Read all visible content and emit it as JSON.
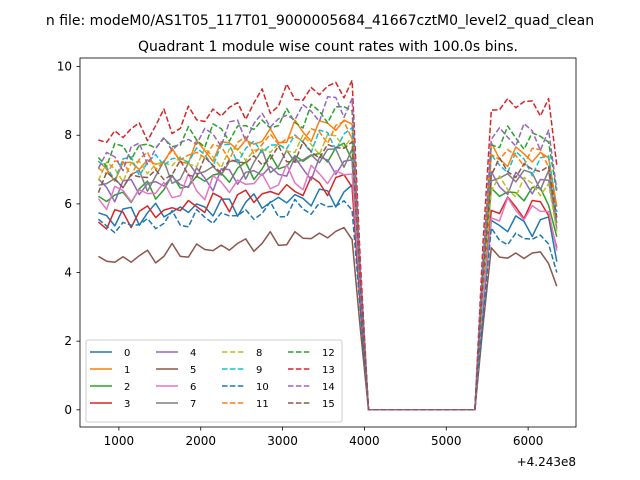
{
  "chart_data": {
    "type": "line",
    "suptitle": "n file: modeM0/AS1T05_117T01_9000005684_41667cztM0_level2_quad_clean",
    "title": "Quadrant 1 module wise count rates with 100.0s bins.",
    "xlabel": "",
    "ylabel": "",
    "x_offset_label": "+4.243e8",
    "xlim": [
      525,
      6585
    ],
    "ylim": [
      -0.5,
      10.25
    ],
    "xticks": [
      1000,
      2000,
      3000,
      4000,
      5000,
      6000
    ],
    "yticks": [
      0,
      2,
      4,
      6,
      8,
      10
    ],
    "grid": false,
    "legend_position": "lower-left",
    "legend_columns": 4,
    "x": [
      750,
      850,
      950,
      1050,
      1150,
      1250,
      1350,
      1450,
      1550,
      1650,
      1750,
      1850,
      1950,
      2050,
      2150,
      2250,
      2350,
      2450,
      2550,
      2650,
      2750,
      2850,
      2950,
      3050,
      3150,
      3250,
      3350,
      3450,
      3550,
      3650,
      3750,
      3850,
      3950,
      4050,
      4150,
      4250,
      4350,
      4450,
      4550,
      4650,
      4750,
      4850,
      4950,
      5050,
      5150,
      5250,
      5350,
      5450,
      5550,
      5650,
      5750,
      5850,
      5950,
      6050,
      6150,
      6250,
      6350
    ],
    "series": [
      {
        "name": "0",
        "color": "#1f77b4",
        "dash": false,
        "base": 5.6,
        "plateau": 6.3,
        "post": 5.4,
        "amp": 0.22,
        "phase": 0.3
      },
      {
        "name": "1",
        "color": "#ff7f0e",
        "dash": false,
        "base": 6.9,
        "plateau": 8.4,
        "post": 7.4,
        "amp": 0.25,
        "phase": 1.1
      },
      {
        "name": "2",
        "color": "#2ca02c",
        "dash": false,
        "base": 6.1,
        "plateau": 7.6,
        "post": 6.3,
        "amp": 0.22,
        "phase": 2.0
      },
      {
        "name": "3",
        "color": "#d62728",
        "dash": false,
        "base": 5.5,
        "plateau": 6.7,
        "post": 5.9,
        "amp": 0.22,
        "phase": 2.7
      },
      {
        "name": "4",
        "color": "#9467bd",
        "dash": false,
        "base": 6.4,
        "plateau": 7.2,
        "post": 6.6,
        "amp": 0.25,
        "phase": 0.8
      },
      {
        "name": "5",
        "color": "#8c564b",
        "dash": false,
        "base": 4.3,
        "plateau": 5.2,
        "post": 4.5,
        "amp": 0.18,
        "phase": 1.7
      },
      {
        "name": "6",
        "color": "#e377c2",
        "dash": false,
        "base": 6.2,
        "plateau": 6.9,
        "post": 5.8,
        "amp": 0.28,
        "phase": 3.3
      },
      {
        "name": "7",
        "color": "#7f7f7f",
        "dash": false,
        "base": 6.6,
        "plateau": 7.5,
        "post": 6.8,
        "amp": 0.28,
        "phase": 4.1
      },
      {
        "name": "8",
        "color": "#bcbd22",
        "dash": true,
        "base": 6.9,
        "plateau": 7.9,
        "post": 6.5,
        "amp": 0.22,
        "phase": 5.0
      },
      {
        "name": "9",
        "color": "#17becf",
        "dash": true,
        "base": 7.0,
        "plateau": 8.0,
        "post": 7.2,
        "amp": 0.25,
        "phase": 0.5
      },
      {
        "name": "10",
        "color": "#1f77b4",
        "dash": true,
        "base": 5.3,
        "plateau": 6.0,
        "post": 5.0,
        "amp": 0.2,
        "phase": 1.4
      },
      {
        "name": "11",
        "color": "#ff7f0e",
        "dash": true,
        "base": 7.0,
        "plateau": 8.2,
        "post": 7.4,
        "amp": 0.22,
        "phase": 2.3
      },
      {
        "name": "12",
        "color": "#2ca02c",
        "dash": true,
        "base": 7.4,
        "plateau": 8.8,
        "post": 7.9,
        "amp": 0.25,
        "phase": 3.1
      },
      {
        "name": "13",
        "color": "#d62728",
        "dash": true,
        "base": 7.9,
        "plateau": 9.5,
        "post": 8.9,
        "amp": 0.3,
        "phase": 3.9
      },
      {
        "name": "14",
        "color": "#9467bd",
        "dash": true,
        "base": 7.2,
        "plateau": 9.0,
        "post": 8.0,
        "amp": 0.28,
        "phase": 4.6
      },
      {
        "name": "15",
        "color": "#8c564b",
        "dash": true,
        "base": 6.6,
        "plateau": 7.7,
        "post": 7.0,
        "amp": 0.22,
        "phase": 5.5
      }
    ]
  }
}
